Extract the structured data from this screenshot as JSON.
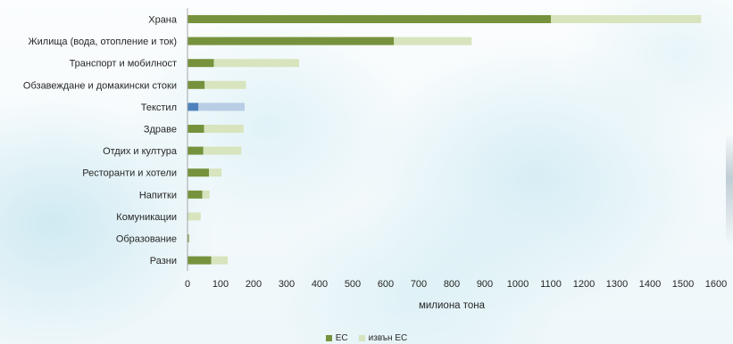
{
  "chart_data": {
    "type": "bar",
    "orientation": "horizontal",
    "stacked": true,
    "categories": [
      "Храна",
      "Жилища (вода, отопление и ток)",
      "Транспорт и мобилност",
      "Обзавеждане и домакински стоки",
      "Текстил",
      "Здраве",
      "Отдих и култура",
      "Ресторанти и хотели",
      "Напитки",
      "Комуникации",
      "Образование",
      "Разни"
    ],
    "series": [
      {
        "name": "ЕС",
        "color": "#76923c",
        "values": [
          1100,
          625,
          80,
          52,
          33,
          50,
          48,
          65,
          45,
          2,
          4,
          72
        ]
      },
      {
        "name": "извън ЕС",
        "color": "#d7e4bd",
        "values": [
          455,
          235,
          258,
          125,
          140,
          120,
          115,
          38,
          22,
          38,
          2,
          50
        ]
      }
    ],
    "highlight": {
      "category": "Текстил",
      "colors": [
        "#4f81bd",
        "#b9cde5"
      ]
    },
    "xlabel": "милиона тона",
    "ylabel": "",
    "xlim": [
      0,
      1600
    ],
    "xticks": [
      0,
      100,
      200,
      300,
      400,
      500,
      600,
      700,
      800,
      900,
      1000,
      1100,
      1200,
      1300,
      1400,
      1500,
      1600
    ],
    "grid": false,
    "legend_position": "bottom"
  }
}
